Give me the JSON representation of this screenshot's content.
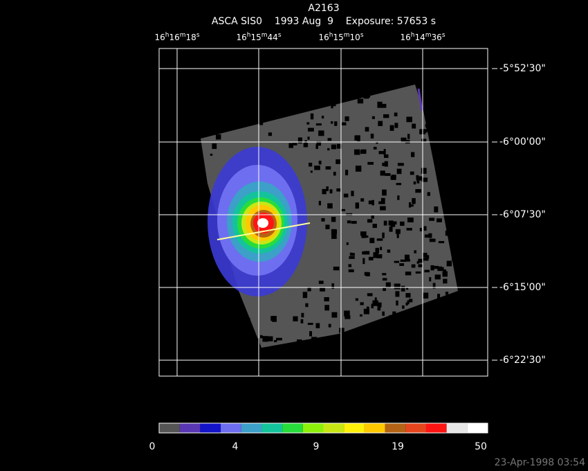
{
  "header": {
    "title": "A2163",
    "subtitle": "ASCA SIS0    1993 Aug  9    Exposure: 57653 s"
  },
  "ra_labels": [
    [
      "16",
      "h",
      "16",
      "m",
      "18",
      "s"
    ],
    [
      "16",
      "h",
      "15",
      "m",
      "44",
      "s"
    ],
    [
      "16",
      "h",
      "15",
      "m",
      "10",
      "s"
    ],
    [
      "16",
      "h",
      "14",
      "m",
      "36",
      "s"
    ]
  ],
  "dec_labels": [
    "-5°52'30\"",
    "-6°00'00\"",
    "-6°07'30\"",
    "-6°15'00\"",
    "-6°22'30\""
  ],
  "colorbar": {
    "colors": [
      "#555555",
      "#5a37b4",
      "#1414c8",
      "#6e6ef0",
      "#3ca0c8",
      "#14c39b",
      "#28dc3c",
      "#8cf00a",
      "#c8e614",
      "#fff00a",
      "#ffc800",
      "#b46414",
      "#e6461e",
      "#ff1414",
      "#e6e6e6",
      "#ffffff"
    ],
    "labels": [
      "0",
      "4",
      "9",
      "19",
      "50"
    ]
  },
  "timestamp": "23-Apr-1998 03:54"
}
